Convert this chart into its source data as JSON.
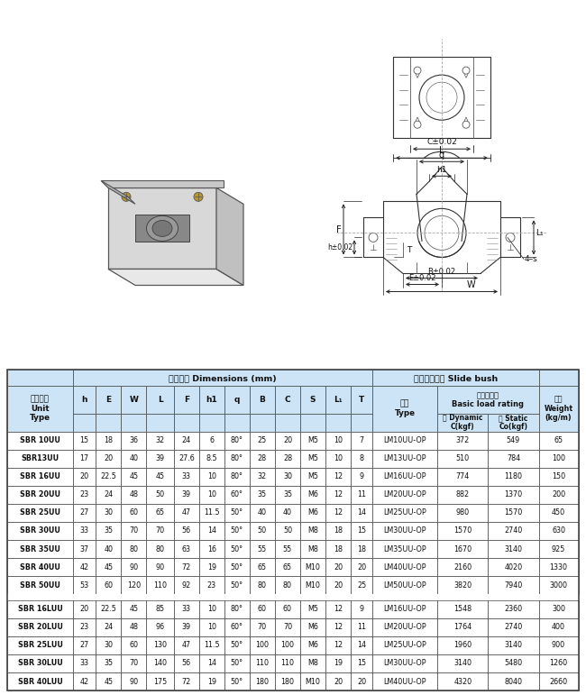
{
  "table_header_bg": "#cce4f5",
  "table_row_bg": "#ffffff",
  "border_color": "#444444",
  "text_color": "#111111",
  "header_chinese1": "滑块型号\nUnit\nType",
  "main_dim_label": "主要尺寸 Dimensions (mm)",
  "slide_bush_label": "配合直线轴承 Slide bush",
  "basic_load_label": "基本负荷率\nBasic load rating",
  "dynamic_label": "动 Dynamic\nC(kgf)",
  "static_label": "静 Static\nCo(kgf)",
  "weight_label": "重量\nWeight\n(kg/m)",
  "type_label": "型号\nType",
  "col_headers": [
    "h",
    "E",
    "W",
    "L",
    "F",
    "h1",
    "q",
    "B",
    "C",
    "S",
    "L₁",
    "T"
  ],
  "rows_uu": [
    [
      "SBR 10UU",
      "15",
      "18",
      "36",
      "32",
      "24",
      "6",
      "80°",
      "25",
      "20",
      "M5",
      "10",
      "7",
      "LM10UU-OP",
      "372",
      "549",
      "65"
    ],
    [
      "SBR13UU",
      "17",
      "20",
      "40",
      "39",
      "27.6",
      "8.5",
      "80°",
      "28",
      "28",
      "M5",
      "10",
      "8",
      "LM13UU-OP",
      "510",
      "784",
      "100"
    ],
    [
      "SBR 16UU",
      "20",
      "22.5",
      "45",
      "45",
      "33",
      "10",
      "80°",
      "32",
      "30",
      "M5",
      "12",
      "9",
      "LM16UU-OP",
      "774",
      "1180",
      "150"
    ],
    [
      "SBR 20UU",
      "23",
      "24",
      "48",
      "50",
      "39",
      "10",
      "60°",
      "35",
      "35",
      "M6",
      "12",
      "11",
      "LM20UU-OP",
      "882",
      "1370",
      "200"
    ],
    [
      "SBR 25UU",
      "27",
      "30",
      "60",
      "65",
      "47",
      "11.5",
      "50°",
      "40",
      "40",
      "M6",
      "12",
      "14",
      "LM25UU-OP",
      "980",
      "1570",
      "450"
    ],
    [
      "SBR 30UU",
      "33",
      "35",
      "70",
      "70",
      "56",
      "14",
      "50°",
      "50",
      "50",
      "M8",
      "18",
      "15",
      "LM30UU-OP",
      "1570",
      "2740",
      "630"
    ],
    [
      "SBR 35UU",
      "37",
      "40",
      "80",
      "80",
      "63",
      "16",
      "50°",
      "55",
      "55",
      "M8",
      "18",
      "18",
      "LM35UU-OP",
      "1670",
      "3140",
      "925"
    ],
    [
      "SBR 40UU",
      "42",
      "45",
      "90",
      "90",
      "72",
      "19",
      "50°",
      "65",
      "65",
      "M10",
      "20",
      "20",
      "LM40UU-OP",
      "2160",
      "4020",
      "1330"
    ],
    [
      "SBR 50UU",
      "53",
      "60",
      "120",
      "110",
      "92",
      "23",
      "50°",
      "80",
      "80",
      "M10",
      "20",
      "25",
      "LM50UU-OP",
      "3820",
      "7940",
      "3000"
    ]
  ],
  "rows_luu": [
    [
      "SBR 16LUU",
      "20",
      "22.5",
      "45",
      "85",
      "33",
      "10",
      "80°",
      "60",
      "60",
      "M5",
      "12",
      "9",
      "LM16UU-OP",
      "1548",
      "2360",
      "300"
    ],
    [
      "SBR 20LUU",
      "23",
      "24",
      "48",
      "96",
      "39",
      "10",
      "60°",
      "70",
      "70",
      "M6",
      "12",
      "11",
      "LM20UU-OP",
      "1764",
      "2740",
      "400"
    ],
    [
      "SBR 25LUU",
      "27",
      "30",
      "60",
      "130",
      "47",
      "11.5",
      "50°",
      "100",
      "100",
      "M6",
      "12",
      "14",
      "LM25UU-OP",
      "1960",
      "3140",
      "900"
    ],
    [
      "SBR 30LUU",
      "33",
      "35",
      "70",
      "140",
      "56",
      "14",
      "50°",
      "110",
      "110",
      "M8",
      "19",
      "15",
      "LM30UU-OP",
      "3140",
      "5480",
      "1260"
    ],
    [
      "SBR 40LUU",
      "42",
      "45",
      "90",
      "175",
      "72",
      "19",
      "50°",
      "180",
      "180",
      "M10",
      "20",
      "20",
      "LM40UU-OP",
      "4320",
      "8040",
      "2660"
    ]
  ]
}
